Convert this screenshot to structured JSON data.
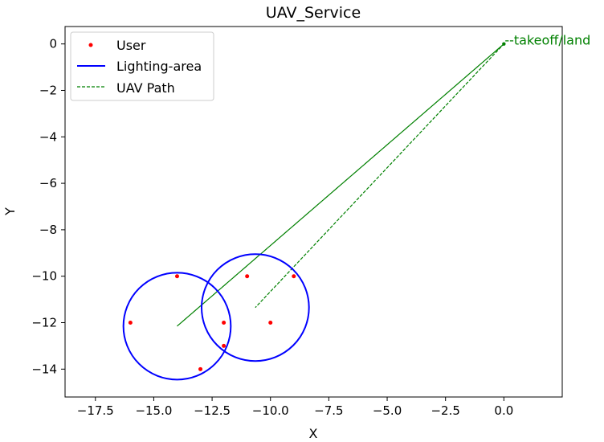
{
  "chart_data": {
    "type": "scatter",
    "title": "UAV_Service",
    "xlabel": "X",
    "ylabel": "Y",
    "xlim": [
      -18.8,
      2.5
    ],
    "ylim": [
      -15.2,
      0.75
    ],
    "xticks": [
      -17.5,
      -15.0,
      -12.5,
      -10.0,
      -7.5,
      -5.0,
      -2.5,
      0.0
    ],
    "xtick_labels": [
      "−17.5",
      "−15.0",
      "−12.5",
      "−10.0",
      "−7.5",
      "−5.0",
      "−2.5",
      "0.0"
    ],
    "yticks": [
      0,
      -2,
      -4,
      -6,
      -8,
      -10,
      -12,
      -14
    ],
    "ytick_labels": [
      "0",
      "−2",
      "−4",
      "−6",
      "−8",
      "−10",
      "−12",
      "−14"
    ],
    "grid": false,
    "legend_position": "top-left",
    "colors": {
      "users": "#ff0000",
      "circles": "#0000ff",
      "path": "#008000"
    },
    "series": [
      {
        "name": "User",
        "kind": "scatter",
        "points": [
          {
            "x": -14,
            "y": -10
          },
          {
            "x": -16,
            "y": -12
          },
          {
            "x": -13,
            "y": -14
          },
          {
            "x": -12,
            "y": -12
          },
          {
            "x": -12,
            "y": -13
          },
          {
            "x": -11,
            "y": -10
          },
          {
            "x": -10,
            "y": -12
          },
          {
            "x": -9,
            "y": -10
          }
        ]
      },
      {
        "name": "Lighting-area",
        "kind": "circle",
        "circles": [
          {
            "cx": -14.0,
            "cy": -12.15,
            "r": 2.3
          },
          {
            "cx": -10.65,
            "cy": -11.35,
            "r": 2.3
          }
        ]
      },
      {
        "name": "UAV Path",
        "kind": "line",
        "points": [
          {
            "x": 0,
            "y": 0
          },
          {
            "x": -14.0,
            "y": -12.15
          },
          {
            "x": 0,
            "y": 0
          },
          {
            "x": -10.65,
            "y": -11.35
          },
          {
            "x": 0,
            "y": 0
          }
        ]
      }
    ],
    "annotations": [
      {
        "text": "--takeoff/land",
        "x": 0,
        "y": 0
      }
    ]
  }
}
